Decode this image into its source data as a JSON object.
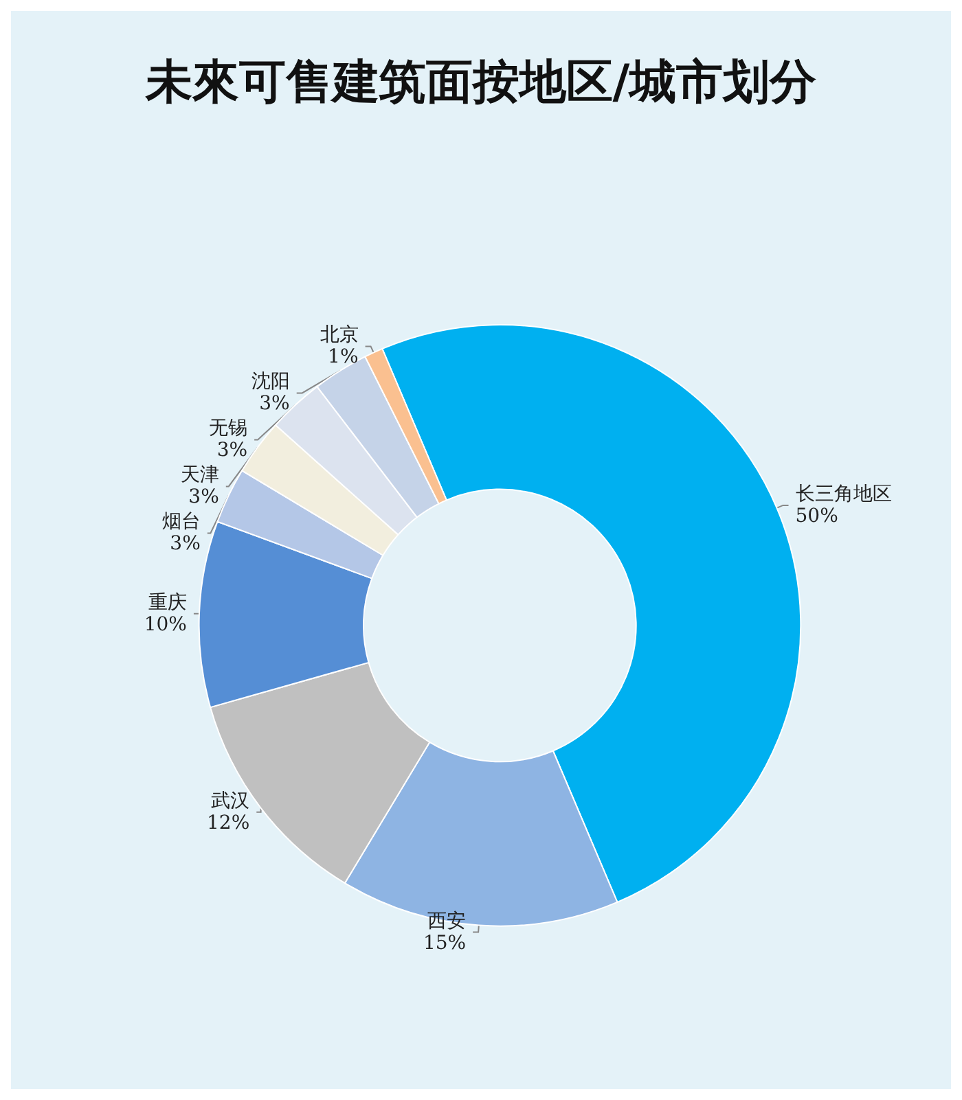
{
  "chart_data": {
    "type": "donut",
    "title": "未來可售建筑面按地区/城市划分",
    "categories": [
      "长三角地区",
      "西安",
      "武汉",
      "重庆",
      "烟台",
      "天津",
      "无锡",
      "沈阳",
      "北京"
    ],
    "values": [
      50,
      15,
      12,
      10,
      3,
      3,
      3,
      3,
      1
    ],
    "value_labels": [
      "50%",
      "15%",
      "12%",
      "10%",
      "3%",
      "3%",
      "3%",
      "3%",
      "1%"
    ],
    "colors": [
      "#00b0f0",
      "#8eb4e3",
      "#c0c0c0",
      "#558ed5",
      "#b4c7e7",
      "#f2eede",
      "#dce3ef",
      "#c5d3e8",
      "#fac090"
    ],
    "legend": false
  }
}
